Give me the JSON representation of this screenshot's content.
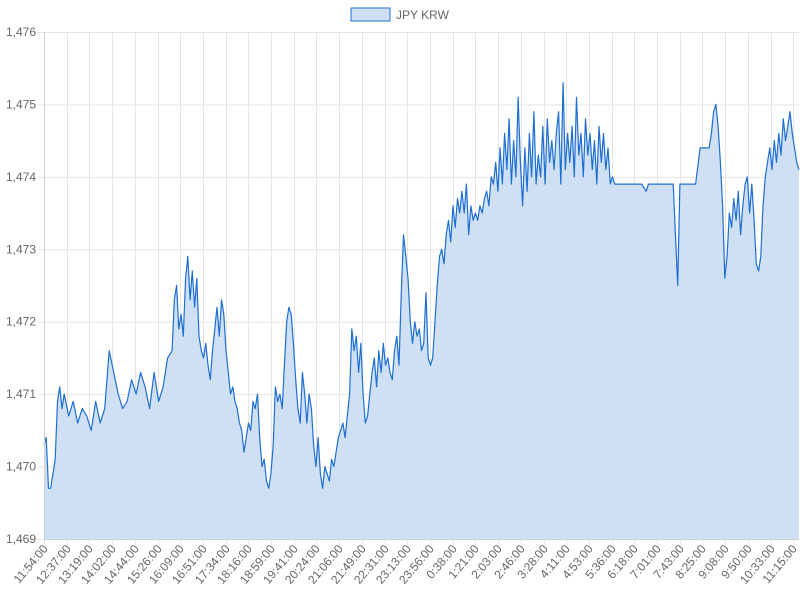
{
  "chart_data": {
    "type": "area",
    "legend": {
      "position": "top-center",
      "entries": [
        "JPY KRW"
      ]
    },
    "series": [
      {
        "name": "JPY KRW",
        "color": "#1f6fd1",
        "fill": "#cfe0f5",
        "points": [
          [
            0,
            1470.3
          ],
          [
            1,
            1470.4
          ],
          [
            2,
            1469.7
          ],
          [
            3,
            1469.7
          ],
          [
            5,
            1470.1
          ],
          [
            6,
            1470.9
          ],
          [
            7,
            1471.1
          ],
          [
            8,
            1470.8
          ],
          [
            9,
            1471.0
          ],
          [
            11,
            1470.7
          ],
          [
            13,
            1470.9
          ],
          [
            15,
            1470.6
          ],
          [
            17,
            1470.8
          ],
          [
            19,
            1470.7
          ],
          [
            21,
            1470.5
          ],
          [
            23,
            1470.9
          ],
          [
            25,
            1470.6
          ],
          [
            27,
            1470.8
          ],
          [
            29,
            1471.6
          ],
          [
            31,
            1471.3
          ],
          [
            33,
            1471.0
          ],
          [
            35,
            1470.8
          ],
          [
            37,
            1470.9
          ],
          [
            39,
            1471.2
          ],
          [
            41,
            1471.0
          ],
          [
            43,
            1471.3
          ],
          [
            45,
            1471.1
          ],
          [
            47,
            1470.8
          ],
          [
            49,
            1471.3
          ],
          [
            51,
            1470.9
          ],
          [
            53,
            1471.1
          ],
          [
            55,
            1471.5
          ],
          [
            57,
            1471.6
          ],
          [
            58,
            1472.3
          ],
          [
            59,
            1472.5
          ],
          [
            60,
            1471.9
          ],
          [
            61,
            1472.1
          ],
          [
            62,
            1471.8
          ],
          [
            63,
            1472.6
          ],
          [
            64,
            1472.9
          ],
          [
            65,
            1472.3
          ],
          [
            66,
            1472.7
          ],
          [
            67,
            1472.2
          ],
          [
            68,
            1472.6
          ],
          [
            69,
            1471.8
          ],
          [
            70,
            1471.6
          ],
          [
            71,
            1471.5
          ],
          [
            72,
            1471.7
          ],
          [
            73,
            1471.4
          ],
          [
            74,
            1471.2
          ],
          [
            75,
            1471.6
          ],
          [
            76,
            1471.9
          ],
          [
            77,
            1472.2
          ],
          [
            78,
            1471.8
          ],
          [
            79,
            1472.3
          ],
          [
            80,
            1472.1
          ],
          [
            81,
            1471.6
          ],
          [
            82,
            1471.3
          ],
          [
            83,
            1471.0
          ],
          [
            84,
            1471.1
          ],
          [
            85,
            1470.9
          ],
          [
            86,
            1470.8
          ],
          [
            87,
            1470.6
          ],
          [
            88,
            1470.5
          ],
          [
            89,
            1470.2
          ],
          [
            90,
            1470.4
          ],
          [
            91,
            1470.6
          ],
          [
            92,
            1470.5
          ],
          [
            93,
            1470.9
          ],
          [
            94,
            1470.8
          ],
          [
            95,
            1471.0
          ],
          [
            96,
            1470.4
          ],
          [
            97,
            1470.0
          ],
          [
            98,
            1470.1
          ],
          [
            99,
            1469.8
          ],
          [
            100,
            1469.7
          ],
          [
            101,
            1469.9
          ],
          [
            102,
            1470.3
          ],
          [
            103,
            1471.1
          ],
          [
            104,
            1470.9
          ],
          [
            105,
            1471.0
          ],
          [
            106,
            1470.8
          ],
          [
            107,
            1471.4
          ],
          [
            108,
            1472.0
          ],
          [
            109,
            1472.2
          ],
          [
            110,
            1472.1
          ],
          [
            111,
            1471.7
          ],
          [
            112,
            1471.2
          ],
          [
            113,
            1470.8
          ],
          [
            114,
            1470.6
          ],
          [
            115,
            1471.3
          ],
          [
            116,
            1471.0
          ],
          [
            117,
            1470.6
          ],
          [
            118,
            1471.0
          ],
          [
            119,
            1470.8
          ],
          [
            120,
            1470.3
          ],
          [
            121,
            1470.0
          ],
          [
            122,
            1470.4
          ],
          [
            123,
            1469.9
          ],
          [
            124,
            1469.7
          ],
          [
            125,
            1470.0
          ],
          [
            126,
            1469.9
          ],
          [
            127,
            1469.8
          ],
          [
            128,
            1470.1
          ],
          [
            129,
            1470.0
          ],
          [
            130,
            1470.2
          ],
          [
            131,
            1470.4
          ],
          [
            132,
            1470.5
          ],
          [
            133,
            1470.6
          ],
          [
            134,
            1470.4
          ],
          [
            135,
            1470.7
          ],
          [
            136,
            1471.0
          ],
          [
            137,
            1471.9
          ],
          [
            138,
            1471.6
          ],
          [
            139,
            1471.8
          ],
          [
            140,
            1471.3
          ],
          [
            141,
            1471.7
          ],
          [
            142,
            1471.0
          ],
          [
            143,
            1470.6
          ],
          [
            144,
            1470.7
          ],
          [
            145,
            1471.0
          ],
          [
            146,
            1471.3
          ],
          [
            147,
            1471.5
          ],
          [
            148,
            1471.1
          ],
          [
            149,
            1471.6
          ],
          [
            150,
            1471.3
          ],
          [
            151,
            1471.7
          ],
          [
            152,
            1471.4
          ],
          [
            153,
            1471.5
          ],
          [
            154,
            1471.3
          ],
          [
            155,
            1471.2
          ],
          [
            156,
            1471.6
          ],
          [
            157,
            1471.8
          ],
          [
            158,
            1471.4
          ],
          [
            159,
            1472.4
          ],
          [
            160,
            1473.2
          ],
          [
            161,
            1472.9
          ],
          [
            162,
            1472.6
          ],
          [
            163,
            1472.0
          ],
          [
            164,
            1471.7
          ],
          [
            165,
            1472.0
          ],
          [
            166,
            1471.8
          ],
          [
            167,
            1471.9
          ],
          [
            168,
            1471.6
          ],
          [
            169,
            1471.7
          ],
          [
            170,
            1472.4
          ],
          [
            171,
            1471.5
          ],
          [
            172,
            1471.4
          ],
          [
            173,
            1471.5
          ],
          [
            174,
            1472.0
          ],
          [
            175,
            1472.5
          ],
          [
            176,
            1472.9
          ],
          [
            177,
            1473.0
          ],
          [
            178,
            1472.8
          ],
          [
            179,
            1473.2
          ],
          [
            180,
            1473.4
          ],
          [
            181,
            1473.1
          ],
          [
            182,
            1473.6
          ],
          [
            183,
            1473.3
          ],
          [
            184,
            1473.7
          ],
          [
            185,
            1473.5
          ],
          [
            186,
            1473.8
          ],
          [
            187,
            1473.5
          ],
          [
            188,
            1473.9
          ],
          [
            189,
            1473.2
          ],
          [
            190,
            1473.6
          ],
          [
            191,
            1473.4
          ],
          [
            192,
            1473.5
          ],
          [
            193,
            1473.4
          ],
          [
            194,
            1473.6
          ],
          [
            195,
            1473.5
          ],
          [
            196,
            1473.7
          ],
          [
            197,
            1473.8
          ],
          [
            198,
            1473.6
          ],
          [
            199,
            1474.0
          ],
          [
            200,
            1473.9
          ],
          [
            201,
            1474.2
          ],
          [
            202,
            1473.8
          ],
          [
            203,
            1474.4
          ],
          [
            204,
            1473.9
          ],
          [
            205,
            1474.6
          ],
          [
            206,
            1474.1
          ],
          [
            207,
            1474.8
          ],
          [
            208,
            1473.9
          ],
          [
            209,
            1474.5
          ],
          [
            210,
            1474.0
          ],
          [
            211,
            1475.1
          ],
          [
            212,
            1474.2
          ],
          [
            213,
            1473.6
          ],
          [
            214,
            1474.4
          ],
          [
            215,
            1473.8
          ],
          [
            216,
            1474.6
          ],
          [
            217,
            1474.0
          ],
          [
            218,
            1474.9
          ],
          [
            219,
            1473.9
          ],
          [
            220,
            1474.3
          ],
          [
            221,
            1474.0
          ],
          [
            222,
            1474.7
          ],
          [
            223,
            1473.9
          ],
          [
            224,
            1474.8
          ],
          [
            225,
            1474.2
          ],
          [
            226,
            1474.5
          ],
          [
            227,
            1474.1
          ],
          [
            228,
            1474.6
          ],
          [
            229,
            1474.9
          ],
          [
            230,
            1473.9
          ],
          [
            231,
            1475.3
          ],
          [
            232,
            1474.1
          ],
          [
            233,
            1474.6
          ],
          [
            234,
            1474.2
          ],
          [
            235,
            1474.7
          ],
          [
            236,
            1474.0
          ],
          [
            237,
            1475.1
          ],
          [
            238,
            1474.3
          ],
          [
            239,
            1474.6
          ],
          [
            240,
            1474.0
          ],
          [
            241,
            1474.8
          ],
          [
            242,
            1474.3
          ],
          [
            243,
            1474.6
          ],
          [
            244,
            1474.1
          ],
          [
            245,
            1474.5
          ],
          [
            246,
            1473.9
          ],
          [
            247,
            1474.7
          ],
          [
            248,
            1474.2
          ],
          [
            249,
            1474.6
          ],
          [
            250,
            1474.1
          ],
          [
            251,
            1474.4
          ],
          [
            252,
            1473.9
          ],
          [
            253,
            1474.0
          ],
          [
            254,
            1473.9
          ],
          [
            256,
            1473.9
          ],
          [
            258,
            1473.9
          ],
          [
            260,
            1473.9
          ],
          [
            262,
            1473.9
          ],
          [
            264,
            1473.9
          ],
          [
            266,
            1473.9
          ],
          [
            268,
            1473.8
          ],
          [
            269,
            1473.9
          ],
          [
            270,
            1473.9
          ],
          [
            272,
            1473.9
          ],
          [
            274,
            1473.9
          ],
          [
            276,
            1473.9
          ],
          [
            278,
            1473.9
          ],
          [
            280,
            1473.9
          ],
          [
            282,
            1472.5
          ],
          [
            283,
            1473.9
          ],
          [
            286,
            1473.9
          ],
          [
            290,
            1473.9
          ],
          [
            292,
            1474.4
          ],
          [
            296,
            1474.4
          ],
          [
            297,
            1474.6
          ],
          [
            298,
            1474.9
          ],
          [
            299,
            1475.0
          ],
          [
            300,
            1474.7
          ],
          [
            301,
            1474.2
          ],
          [
            302,
            1473.6
          ],
          [
            303,
            1472.6
          ],
          [
            304,
            1472.9
          ],
          [
            305,
            1473.5
          ],
          [
            306,
            1473.3
          ],
          [
            307,
            1473.7
          ],
          [
            308,
            1473.4
          ],
          [
            309,
            1473.8
          ],
          [
            310,
            1473.2
          ],
          [
            311,
            1473.6
          ],
          [
            312,
            1473.9
          ],
          [
            313,
            1474.0
          ],
          [
            314,
            1473.5
          ],
          [
            315,
            1473.9
          ],
          [
            316,
            1473.4
          ],
          [
            317,
            1472.8
          ],
          [
            318,
            1472.7
          ],
          [
            319,
            1472.9
          ],
          [
            320,
            1473.6
          ],
          [
            321,
            1474.0
          ],
          [
            322,
            1474.2
          ],
          [
            323,
            1474.4
          ],
          [
            324,
            1474.1
          ],
          [
            325,
            1474.5
          ],
          [
            326,
            1474.2
          ],
          [
            327,
            1474.6
          ],
          [
            328,
            1474.3
          ],
          [
            329,
            1474.8
          ],
          [
            330,
            1474.5
          ],
          [
            331,
            1474.7
          ],
          [
            332,
            1474.9
          ],
          [
            333,
            1474.6
          ],
          [
            334,
            1474.4
          ],
          [
            335,
            1474.2
          ],
          [
            336,
            1474.1
          ]
        ]
      }
    ],
    "x_tick_labels": [
      "11:54:00",
      "12:37:00",
      "13:19:00",
      "14:02:00",
      "14:44:00",
      "15:26:00",
      "16:09:00",
      "16:51:00",
      "17:34:00",
      "18:16:00",
      "18:59:00",
      "19:41:00",
      "20:24:00",
      "21:06:00",
      "21:49:00",
      "22:31:00",
      "23:13:00",
      "23:56:00",
      "0:38:00",
      "1:21:00",
      "2:03:00",
      "2:46:00",
      "3:28:00",
      "4:11:00",
      "4:53:00",
      "5:36:00",
      "6:18:00",
      "7:01:00",
      "7:43:00",
      "8:25:00",
      "9:08:00",
      "9:50:00",
      "10:33:00",
      "11:15:00"
    ],
    "x_range": [
      0,
      336
    ],
    "y_range": [
      1469,
      1476
    ],
    "y_ticks": [
      1469,
      1470,
      1471,
      1472,
      1473,
      1474,
      1475,
      1476
    ],
    "y_tick_labels": [
      "1,469",
      "1,470",
      "1,471",
      "1,472",
      "1,473",
      "1,474",
      "1,475",
      "1,476"
    ],
    "grid": true
  }
}
